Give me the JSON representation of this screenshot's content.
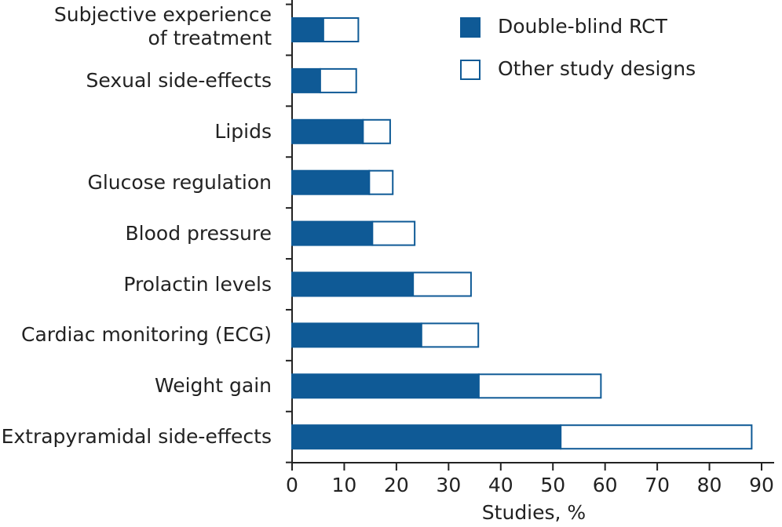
{
  "chart_data": {
    "type": "stacked_barh",
    "x_label": "Studies, %",
    "categories": [
      "Subjective experience of treatment",
      "Sexual side-effects",
      "Lipids",
      "Glucose regulation",
      "Blood pressure",
      "Prolactin levels",
      "Cardiac monitoring (ECG)",
      "Weight gain",
      "Extrapyramidal side-effects"
    ],
    "series": [
      {
        "name": "Double-blind RCT",
        "color": "#0f5a96",
        "values": [
          6.0,
          5.4,
          13.6,
          14.8,
          15.4,
          23.2,
          24.8,
          35.8,
          51.5
        ]
      },
      {
        "name": "Other study designs",
        "color": "#ffffff",
        "values": [
          6.7,
          6.9,
          5.2,
          4.5,
          8.1,
          11.1,
          10.9,
          23.4,
          36.6
        ]
      }
    ],
    "xlim": [
      0,
      90
    ],
    "xticks": [
      0,
      10,
      20,
      30,
      40,
      50,
      60,
      70,
      80,
      90
    ],
    "legend": "upper right"
  }
}
